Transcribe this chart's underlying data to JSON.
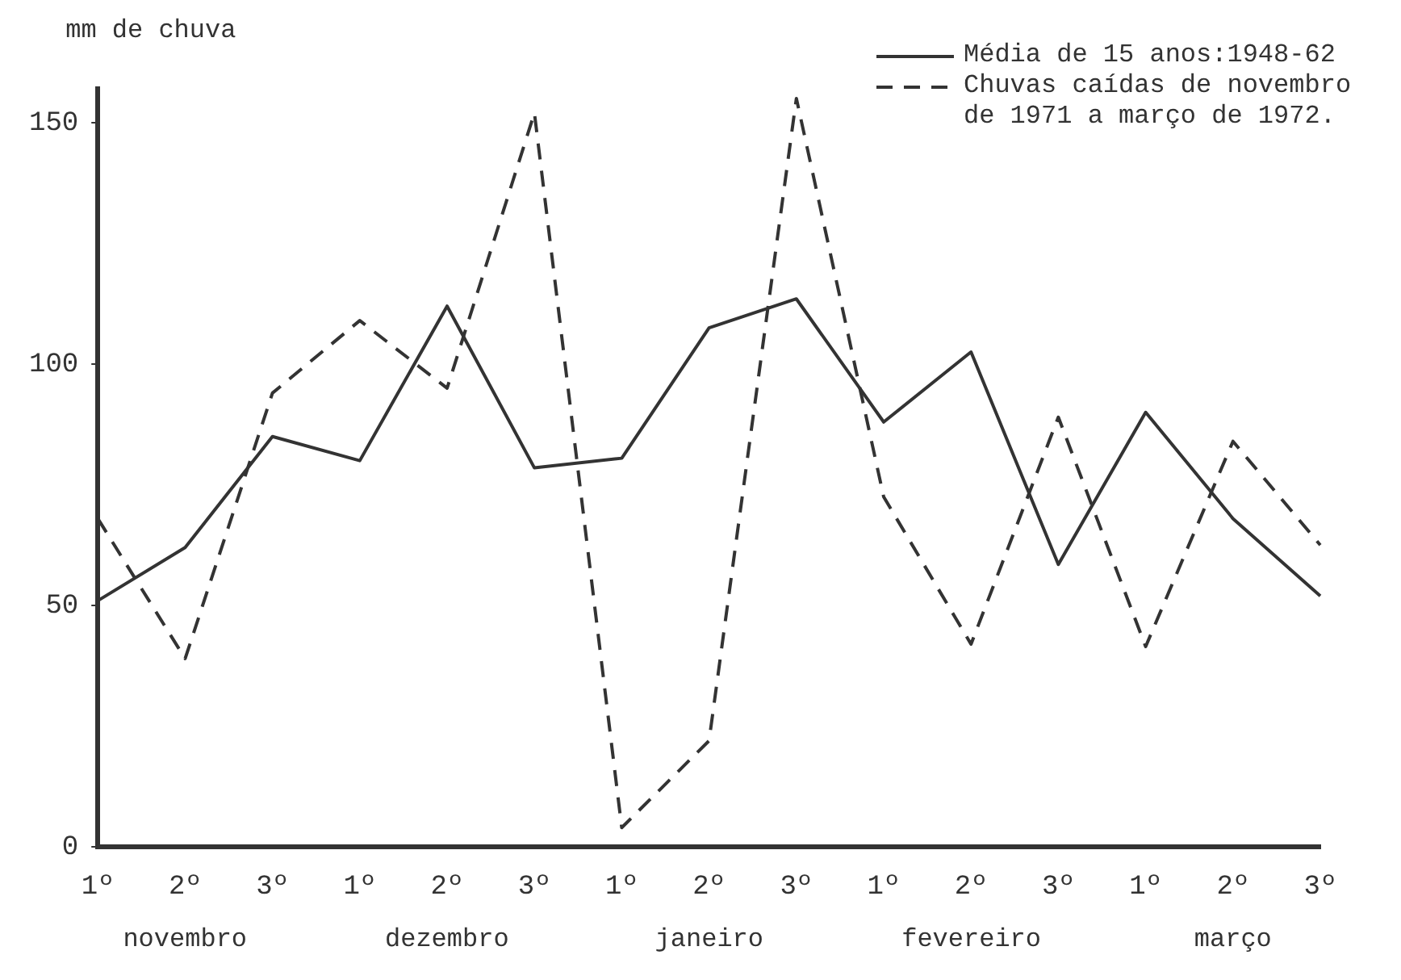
{
  "chart_data": {
    "type": "line",
    "ylabel": "mm de chuva",
    "categories": [
      "1º",
      "2º",
      "3º",
      "1º",
      "2º",
      "3º",
      "1º",
      "2º",
      "3º",
      "1º",
      "2º",
      "3º",
      "1º",
      "2º",
      "3º"
    ],
    "series": [
      {
        "name": "Média de 15 anos:1948-62",
        "color": "#333333",
        "line_style": "solid",
        "values": [
          51,
          62,
          85,
          80,
          112,
          78.5,
          80.5,
          107.5,
          113.5,
          88,
          102.5,
          58.5,
          90,
          68,
          52
        ]
      },
      {
        "name": "Chuvas caídas de novembro de 1971 a março de 1972.",
        "color": "#333333",
        "line_style": "dashed",
        "values": [
          68,
          39,
          94,
          109,
          95,
          152,
          4,
          22,
          155,
          72.5,
          42,
          89,
          41.5,
          84,
          62.5
        ]
      }
    ],
    "ylim": [
      0,
      157
    ],
    "yticks": [
      0,
      50,
      100,
      150
    ],
    "grid": false,
    "legend": "top right",
    "marker": "none",
    "annotations": [
      "novembro",
      "dezembro",
      "janeiro",
      "fevereiro",
      "março"
    ]
  }
}
